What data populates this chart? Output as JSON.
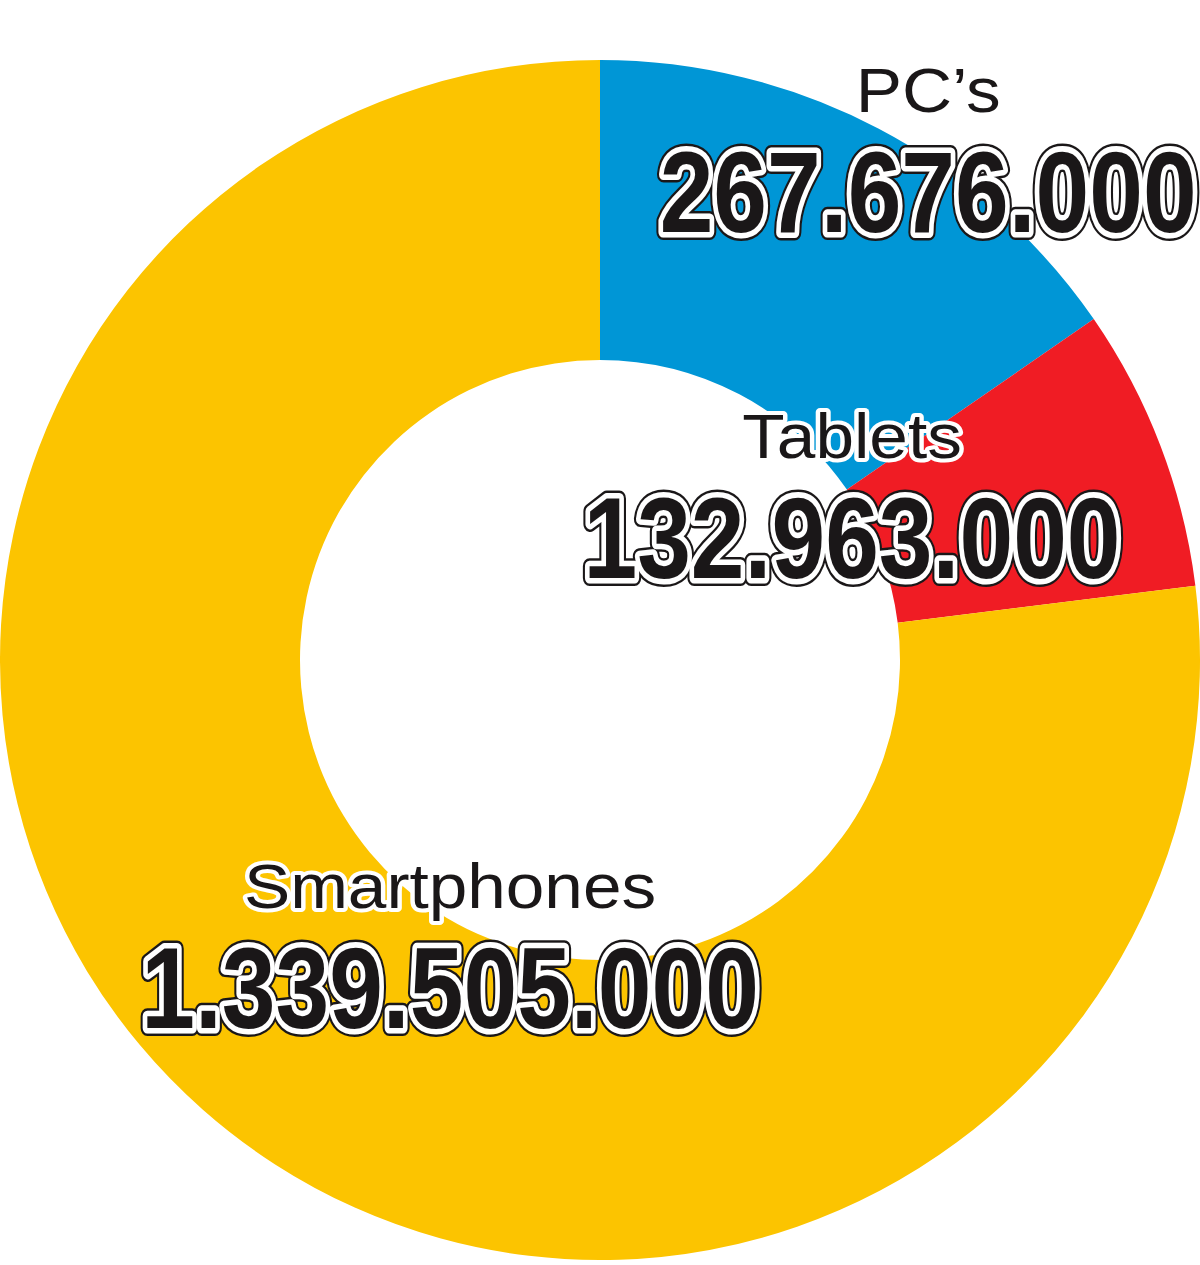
{
  "chart_data": {
    "type": "donut",
    "categories": [
      "PC’s",
      "Tablets",
      "Smartphones"
    ],
    "values": [
      267676000,
      132963000,
      1339505000
    ],
    "colors": [
      "#0096d6",
      "#f01c24",
      "#fcc400"
    ],
    "value_labels": [
      "267.676.000",
      "132.963.000",
      "1.339.505.000"
    ]
  }
}
